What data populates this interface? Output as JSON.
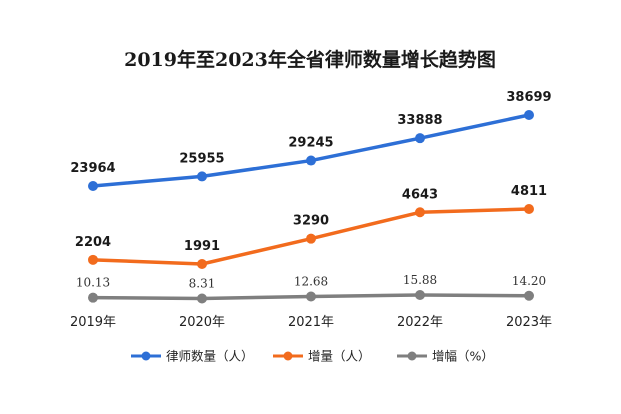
{
  "chart_data": {
    "type": "line",
    "title": "2019年至2023年全省律师数量增长趋势图",
    "categories": [
      "2019年",
      "2020年",
      "2021年",
      "2022年",
      "2023年"
    ],
    "series": [
      {
        "name": "律师数量（人）",
        "color": "#2d6fd6",
        "values": [
          23964,
          25955,
          29245,
          33888,
          38699
        ],
        "labels": [
          "23964",
          "25955",
          "29245",
          "33888",
          "38699"
        ]
      },
      {
        "name": "增量（人）",
        "color": "#f26b1d",
        "values": [
          2204,
          1991,
          3290,
          4643,
          4811
        ],
        "labels": [
          "2204",
          "1991",
          "3290",
          "4643",
          "4811"
        ]
      },
      {
        "name": "增幅（%）",
        "color": "#7f7f7f",
        "values": [
          10.13,
          8.31,
          12.68,
          15.88,
          14.2
        ],
        "labels": [
          "10.13",
          "8.31",
          "12.68",
          "15.88",
          "14.20"
        ]
      }
    ],
    "legend_position": "bottom",
    "grid": false
  }
}
